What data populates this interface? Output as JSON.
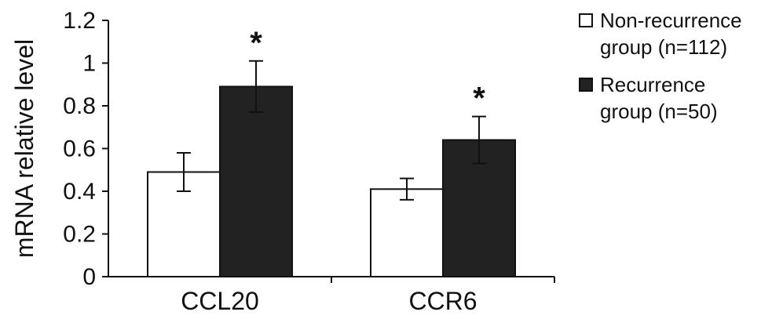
{
  "chart_data": {
    "type": "bar",
    "title": "",
    "xlabel": "",
    "ylabel": "mRNA relative level",
    "ylim": [
      0,
      1.2
    ],
    "yticks": [
      0,
      0.2,
      0.4,
      0.6,
      0.8,
      1,
      1.2
    ],
    "ytick_labels": [
      "0",
      "0.2",
      "0.4",
      "0.6",
      "0.8",
      "1",
      "1.2"
    ],
    "categories": [
      "CCL20",
      "CCR6"
    ],
    "grid": false,
    "legend_position": "right",
    "series": [
      {
        "name": "Non-recurrence group (n=112)",
        "legend_lines": [
          "Non-recurrence",
          "group (n=112)"
        ],
        "color": "#ffffff",
        "values": [
          0.49,
          0.41
        ],
        "errors": [
          0.09,
          0.05
        ]
      },
      {
        "name": "Recurrence group (n=50)",
        "legend_lines": [
          "Recurrence",
          "group (n=50)"
        ],
        "color": "#222222",
        "values": [
          0.89,
          0.64
        ],
        "errors": [
          0.12,
          0.11
        ]
      }
    ],
    "annotations": [
      {
        "category": "CCL20",
        "series": 1,
        "text": "*"
      },
      {
        "category": "CCR6",
        "series": 1,
        "text": "*"
      }
    ]
  }
}
